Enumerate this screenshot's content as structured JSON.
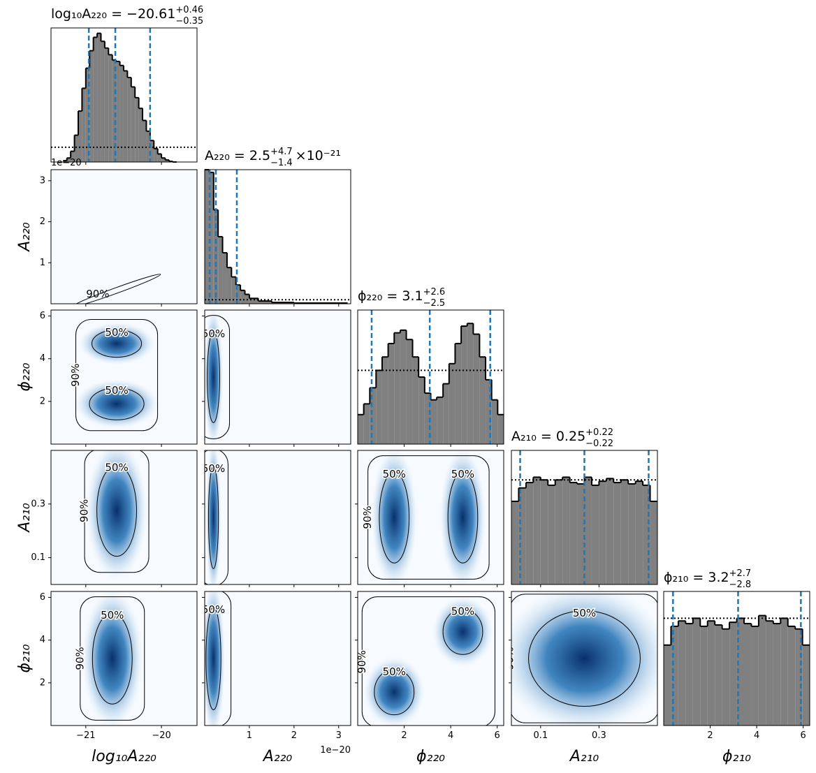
{
  "chart_data": {
    "type": "corner",
    "hist_ylim": [
      0,
      1
    ],
    "contour_levels": [
      "50%",
      "90%"
    ],
    "parameters": [
      {
        "label": "log₁₀A₂₂₀",
        "title": {
          "text": "log₁₀A₂₂₀ = −20.61",
          "upper": "+0.46",
          "lower": "−0.35"
        },
        "lim": [
          -21.46,
          -19.53
        ],
        "ticks": [
          {
            "value": -21,
            "label": "−21"
          },
          {
            "value": -20,
            "label": "−20"
          }
        ],
        "quantiles": [
          -20.96,
          -20.61,
          -20.15
        ],
        "hist": {
          "bins": [
            -21.3,
            -21.25,
            -21.2,
            -21.15,
            -21.1,
            -21.05,
            -21.0,
            -20.95,
            -20.9,
            -20.85,
            -20.8,
            -20.75,
            -20.7,
            -20.65,
            -20.6,
            -20.55,
            -20.5,
            -20.45,
            -20.4,
            -20.35,
            -20.3,
            -20.25,
            -20.2,
            -20.15,
            -20.1,
            -20.05,
            -20.0,
            -19.95,
            -19.9,
            -19.85,
            -19.8
          ],
          "values": [
            0.01,
            0.03,
            0.08,
            0.2,
            0.38,
            0.55,
            0.7,
            0.83,
            0.93,
            0.96,
            0.9,
            0.85,
            0.8,
            0.76,
            0.75,
            0.72,
            0.68,
            0.63,
            0.56,
            0.48,
            0.4,
            0.31,
            0.23,
            0.16,
            0.1,
            0.06,
            0.03,
            0.015,
            0.005,
            0.0
          ]
        },
        "prior": {
          "bins": [
            -21.46,
            -19.53
          ],
          "values": [
            0.11
          ]
        }
      },
      {
        "label": "A₂₂₀",
        "title": {
          "text": "A₂₂₀ = 2.5",
          "upper": "+4.7",
          "lower": "−1.4",
          "suffix": "×10⁻²¹"
        },
        "offset_label": "1e−20",
        "lim": [
          0,
          3.27
        ],
        "ticks": [
          1,
          2,
          3
        ],
        "quantiles": [
          0.11,
          0.25,
          0.72
        ],
        "hist": {
          "bins": [
            0,
            0.1,
            0.2,
            0.3,
            0.4,
            0.5,
            0.6,
            0.7,
            0.8,
            0.9,
            1.0,
            1.2,
            1.5,
            2.0,
            3.2
          ],
          "values": [
            1.0,
            0.98,
            0.7,
            0.5,
            0.38,
            0.27,
            0.2,
            0.14,
            0.1,
            0.07,
            0.04,
            0.02,
            0.01,
            0.005
          ]
        },
        "prior": {
          "bins": [
            0,
            3.27
          ],
          "values": [
            0.03
          ]
        }
      },
      {
        "label": "ϕ₂₂₀",
        "title": {
          "text": "ϕ₂₂₀ = 3.1",
          "upper": "+2.6",
          "lower": "−2.5"
        },
        "lim": [
          0,
          6.28
        ],
        "ticks": [
          2,
          4,
          6
        ],
        "quantiles": [
          0.6,
          3.1,
          5.7
        ],
        "hist": {
          "bins": [
            0,
            0.26,
            0.52,
            0.79,
            1.05,
            1.31,
            1.57,
            1.83,
            2.09,
            2.36,
            2.62,
            2.88,
            3.14,
            3.4,
            3.67,
            3.93,
            4.19,
            4.45,
            4.71,
            4.97,
            5.24,
            5.5,
            5.76,
            6.02,
            6.28
          ],
          "values": [
            0.22,
            0.3,
            0.42,
            0.55,
            0.65,
            0.75,
            0.83,
            0.85,
            0.78,
            0.65,
            0.5,
            0.38,
            0.33,
            0.35,
            0.45,
            0.6,
            0.75,
            0.88,
            0.9,
            0.82,
            0.65,
            0.48,
            0.33,
            0.22
          ]
        },
        "prior": {
          "bins": [
            0,
            6.28
          ],
          "values": [
            0.55
          ]
        }
      },
      {
        "label": "A₂₁₀",
        "title": {
          "text": "A₂₁₀ = 0.25",
          "upper": "+0.22",
          "lower": "−0.22"
        },
        "lim": [
          0,
          0.5
        ],
        "ticks": [
          0.1,
          0.3
        ],
        "quantiles": [
          0.03,
          0.25,
          0.47
        ],
        "hist": {
          "bins": [
            0,
            0.025,
            0.05,
            0.075,
            0.1,
            0.125,
            0.15,
            0.175,
            0.2,
            0.225,
            0.25,
            0.275,
            0.3,
            0.325,
            0.35,
            0.375,
            0.4,
            0.425,
            0.45,
            0.475,
            0.5
          ],
          "values": [
            0.62,
            0.72,
            0.76,
            0.8,
            0.78,
            0.74,
            0.78,
            0.8,
            0.76,
            0.75,
            0.8,
            0.74,
            0.77,
            0.79,
            0.76,
            0.78,
            0.75,
            0.77,
            0.74,
            0.62
          ]
        },
        "prior": {
          "bins": [
            0,
            0.5
          ],
          "values": [
            0.78
          ]
        }
      },
      {
        "label": "ϕ₂₁₀",
        "title": {
          "text": "ϕ₂₁₀ = 3.2",
          "upper": "+2.7",
          "lower": "−2.8"
        },
        "lim": [
          0,
          6.28
        ],
        "ticks": [
          2,
          4,
          6
        ],
        "quantiles": [
          0.4,
          3.2,
          5.9
        ],
        "hist": {
          "bins": [
            0,
            0.314,
            0.628,
            0.942,
            1.257,
            1.571,
            1.885,
            2.199,
            2.513,
            2.827,
            3.142,
            3.456,
            3.77,
            4.084,
            4.398,
            4.712,
            5.027,
            5.341,
            5.655,
            5.969,
            6.283
          ],
          "values": [
            0.6,
            0.74,
            0.78,
            0.76,
            0.8,
            0.74,
            0.78,
            0.75,
            0.72,
            0.77,
            0.8,
            0.76,
            0.74,
            0.82,
            0.78,
            0.76,
            0.8,
            0.74,
            0.72,
            0.6
          ]
        },
        "prior": {
          "bins": [
            0,
            6.28
          ],
          "values": [
            0.8
          ]
        }
      }
    ]
  }
}
